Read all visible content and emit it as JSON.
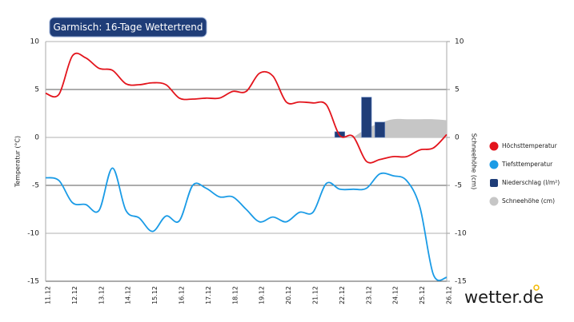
{
  "chart_data": {
    "type": "line",
    "title": "Garmisch: 16-Tage Wettertrend",
    "y_label": "Temperatur (°C)",
    "y2_label": "Schneehöhe (cm)",
    "brand": "wetter.de",
    "categories": [
      "11.12",
      null,
      "12.12",
      null,
      "13.12",
      null,
      "14.12",
      null,
      "15.12",
      null,
      "16.12",
      null,
      "17.12",
      null,
      "18.12",
      null,
      "19.12",
      null,
      "20.12",
      null,
      "21.12",
      null,
      "22.12",
      null,
      "23.12",
      null,
      "24.12",
      null,
      "25.12",
      null,
      "26.12"
    ],
    "ylim": [
      -15,
      10
    ],
    "yticks": [
      10,
      5,
      0,
      -5,
      -10,
      -15
    ],
    "y2lim": [
      -15,
      10
    ],
    "y2ticks": [
      10,
      5,
      0,
      -5,
      -10,
      -15
    ],
    "grid": true,
    "legend": "right",
    "series": [
      {
        "name": "Höchsttemperatur",
        "type": "line",
        "color": "#e3141c",
        "values": [
          4.6,
          4.5,
          8.5,
          8.3,
          7.2,
          7.0,
          5.6,
          5.5,
          5.7,
          5.5,
          4.1,
          4.0,
          4.1,
          4.1,
          4.8,
          4.8,
          6.7,
          6.4,
          3.7,
          3.7,
          3.6,
          3.4,
          0.2,
          0.1,
          -2.5,
          -2.3,
          -2.0,
          -2.0,
          -1.3,
          -1.1,
          0.3
        ]
      },
      {
        "name": "Tiefsttemperatur",
        "type": "line",
        "color": "#1a9be6",
        "values": [
          -4.2,
          -4.5,
          -6.8,
          -7.0,
          -7.6,
          -3.2,
          -7.6,
          -8.4,
          -9.8,
          -8.2,
          -8.7,
          -5.0,
          -5.3,
          -6.2,
          -6.2,
          -7.5,
          -8.8,
          -8.3,
          -8.8,
          -7.8,
          -7.8,
          -4.8,
          -5.4,
          -5.4,
          -5.3,
          -3.8,
          -4.0,
          -4.5,
          -7.3,
          -14.3,
          -14.6
        ]
      },
      {
        "name": "Niederschlag (l/m²)",
        "type": "bar",
        "color": "#1f3d78",
        "values": [
          null,
          null,
          null,
          null,
          null,
          null,
          null,
          null,
          null,
          null,
          null,
          null,
          null,
          null,
          null,
          null,
          null,
          null,
          null,
          null,
          null,
          null,
          0.6,
          null,
          4.2,
          1.6,
          null,
          null,
          null,
          null,
          null
        ]
      },
      {
        "name": "Schneehöhe (cm)",
        "type": "area",
        "axis": "y2",
        "color": "#c6c6c6",
        "values": [
          null,
          null,
          null,
          null,
          null,
          null,
          null,
          null,
          null,
          null,
          null,
          null,
          null,
          null,
          null,
          null,
          null,
          null,
          null,
          null,
          null,
          null,
          null,
          0,
          0.9,
          1.5,
          1.9,
          1.9,
          1.9,
          1.9,
          1.8
        ]
      }
    ]
  }
}
